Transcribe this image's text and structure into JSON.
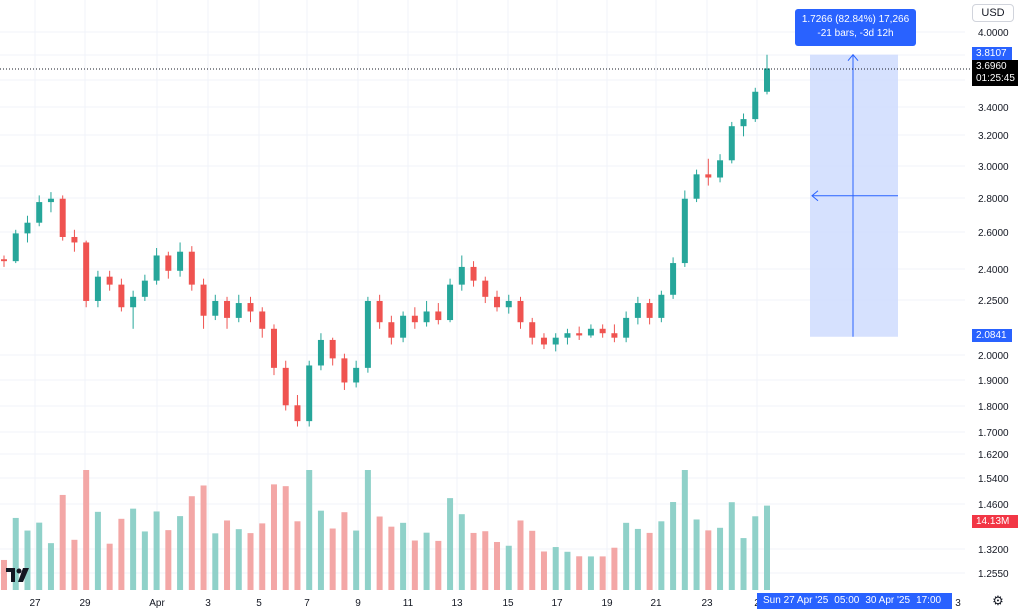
{
  "header": {
    "currency": "USD"
  },
  "measure_tooltip": {
    "line1": "1.7266 (82.84%) 17,266",
    "line2": "-21 bars, -3d 12h"
  },
  "price_axis": {
    "labels": [
      "4.0000",
      "3.4000",
      "3.2000",
      "3.0000",
      "2.8000",
      "2.6000",
      "2.4000",
      "2.2500",
      "2.0000",
      "1.9000",
      "1.8000",
      "1.7000",
      "1.6200",
      "1.5400",
      "1.4600",
      "1.3200",
      "1.2550"
    ],
    "measure_top": "3.8107",
    "measure_bottom": "2.0841",
    "last_price": "3.6960",
    "countdown": "01:25:45",
    "volume_label": "14.13M"
  },
  "time_axis": {
    "labels": [
      "27",
      "29",
      "Apr",
      "3",
      "5",
      "7",
      "9",
      "11",
      "13",
      "15",
      "17",
      "19",
      "21",
      "23",
      "2",
      "3"
    ],
    "range_start": "Sun 27 Apr '25",
    "range_start_time": "05:00",
    "range_end": "30 Apr '25",
    "range_end_time": "17:00"
  },
  "colors": {
    "up": "#26a69a",
    "down": "#ef5350",
    "vol_up": "#8fd1c9",
    "vol_down": "#f3a7a6",
    "measure_fill": "#cfdcfe",
    "measure_line": "#2962ff"
  },
  "chart_data": {
    "type": "candlestick",
    "scale": "log",
    "ylim": [
      1.2,
      4.1
    ],
    "grid": true,
    "last_price": 3.696,
    "measure": {
      "low": 2.0841,
      "high": 3.8107,
      "change": 1.7266,
      "change_pct": 82.84,
      "bars": -21
    },
    "candles_12h_approx": [
      {
        "o": 2.46,
        "h": 2.48,
        "l": 2.42,
        "c": 2.45
      },
      {
        "o": 2.45,
        "h": 2.62,
        "l": 2.44,
        "c": 2.6
      },
      {
        "o": 2.6,
        "h": 2.7,
        "l": 2.55,
        "c": 2.66
      },
      {
        "o": 2.66,
        "h": 2.82,
        "l": 2.64,
        "c": 2.78
      },
      {
        "o": 2.78,
        "h": 2.84,
        "l": 2.72,
        "c": 2.8
      },
      {
        "o": 2.8,
        "h": 2.82,
        "l": 2.56,
        "c": 2.58
      },
      {
        "o": 2.58,
        "h": 2.62,
        "l": 2.5,
        "c": 2.55
      },
      {
        "o": 2.55,
        "h": 2.56,
        "l": 2.22,
        "c": 2.25
      },
      {
        "o": 2.25,
        "h": 2.4,
        "l": 2.22,
        "c": 2.37
      },
      {
        "o": 2.37,
        "h": 2.4,
        "l": 2.3,
        "c": 2.33
      },
      {
        "o": 2.33,
        "h": 2.36,
        "l": 2.2,
        "c": 2.22
      },
      {
        "o": 2.22,
        "h": 2.3,
        "l": 2.12,
        "c": 2.27
      },
      {
        "o": 2.27,
        "h": 2.38,
        "l": 2.25,
        "c": 2.35
      },
      {
        "o": 2.35,
        "h": 2.52,
        "l": 2.33,
        "c": 2.48
      },
      {
        "o": 2.48,
        "h": 2.5,
        "l": 2.36,
        "c": 2.4
      },
      {
        "o": 2.4,
        "h": 2.55,
        "l": 2.37,
        "c": 2.5
      },
      {
        "o": 2.5,
        "h": 2.53,
        "l": 2.3,
        "c": 2.33
      },
      {
        "o": 2.33,
        "h": 2.36,
        "l": 2.12,
        "c": 2.18
      },
      {
        "o": 2.18,
        "h": 2.28,
        "l": 2.16,
        "c": 2.25
      },
      {
        "o": 2.25,
        "h": 2.27,
        "l": 2.12,
        "c": 2.17
      },
      {
        "o": 2.17,
        "h": 2.28,
        "l": 2.15,
        "c": 2.24
      },
      {
        "o": 2.24,
        "h": 2.27,
        "l": 2.15,
        "c": 2.2
      },
      {
        "o": 2.2,
        "h": 2.22,
        "l": 2.08,
        "c": 2.12
      },
      {
        "o": 2.12,
        "h": 2.14,
        "l": 1.92,
        "c": 1.95
      },
      {
        "o": 1.95,
        "h": 1.98,
        "l": 1.78,
        "c": 1.8
      },
      {
        "o": 1.8,
        "h": 1.84,
        "l": 1.72,
        "c": 1.74
      },
      {
        "o": 1.74,
        "h": 1.98,
        "l": 1.72,
        "c": 1.96
      },
      {
        "o": 1.96,
        "h": 2.1,
        "l": 1.94,
        "c": 2.07
      },
      {
        "o": 2.07,
        "h": 2.08,
        "l": 1.96,
        "c": 1.99
      },
      {
        "o": 1.99,
        "h": 2.01,
        "l": 1.86,
        "c": 1.89
      },
      {
        "o": 1.89,
        "h": 1.98,
        "l": 1.87,
        "c": 1.95
      },
      {
        "o": 1.95,
        "h": 2.27,
        "l": 1.93,
        "c": 2.25
      },
      {
        "o": 2.25,
        "h": 2.28,
        "l": 2.12,
        "c": 2.15
      },
      {
        "o": 2.15,
        "h": 2.18,
        "l": 2.05,
        "c": 2.08
      },
      {
        "o": 2.08,
        "h": 2.2,
        "l": 2.06,
        "c": 2.18
      },
      {
        "o": 2.18,
        "h": 2.22,
        "l": 2.12,
        "c": 2.15
      },
      {
        "o": 2.15,
        "h": 2.25,
        "l": 2.13,
        "c": 2.2
      },
      {
        "o": 2.2,
        "h": 2.24,
        "l": 2.14,
        "c": 2.16
      },
      {
        "o": 2.16,
        "h": 2.36,
        "l": 2.15,
        "c": 2.33
      },
      {
        "o": 2.33,
        "h": 2.48,
        "l": 2.3,
        "c": 2.42
      },
      {
        "o": 2.42,
        "h": 2.45,
        "l": 2.32,
        "c": 2.35
      },
      {
        "o": 2.35,
        "h": 2.37,
        "l": 2.24,
        "c": 2.27
      },
      {
        "o": 2.27,
        "h": 2.3,
        "l": 2.2,
        "c": 2.22
      },
      {
        "o": 2.22,
        "h": 2.28,
        "l": 2.19,
        "c": 2.25
      },
      {
        "o": 2.25,
        "h": 2.27,
        "l": 2.12,
        "c": 2.15
      },
      {
        "o": 2.15,
        "h": 2.17,
        "l": 2.05,
        "c": 2.08
      },
      {
        "o": 2.08,
        "h": 2.1,
        "l": 2.03,
        "c": 2.05
      },
      {
        "o": 2.05,
        "h": 2.1,
        "l": 2.02,
        "c": 2.08
      },
      {
        "o": 2.08,
        "h": 2.12,
        "l": 2.05,
        "c": 2.1
      },
      {
        "o": 2.1,
        "h": 2.13,
        "l": 2.07,
        "c": 2.09
      },
      {
        "o": 2.09,
        "h": 2.14,
        "l": 2.08,
        "c": 2.12
      },
      {
        "o": 2.12,
        "h": 2.14,
        "l": 2.08,
        "c": 2.1
      },
      {
        "o": 2.1,
        "h": 2.14,
        "l": 2.06,
        "c": 2.08
      },
      {
        "o": 2.08,
        "h": 2.2,
        "l": 2.06,
        "c": 2.17
      },
      {
        "o": 2.17,
        "h": 2.27,
        "l": 2.14,
        "c": 2.24
      },
      {
        "o": 2.24,
        "h": 2.26,
        "l": 2.14,
        "c": 2.17
      },
      {
        "o": 2.17,
        "h": 2.3,
        "l": 2.15,
        "c": 2.28
      },
      {
        "o": 2.28,
        "h": 2.47,
        "l": 2.26,
        "c": 2.44
      },
      {
        "o": 2.44,
        "h": 2.85,
        "l": 2.42,
        "c": 2.8
      },
      {
        "o": 2.8,
        "h": 2.98,
        "l": 2.78,
        "c": 2.95
      },
      {
        "o": 2.95,
        "h": 3.05,
        "l": 2.88,
        "c": 2.93
      },
      {
        "o": 2.93,
        "h": 3.08,
        "l": 2.9,
        "c": 3.04
      },
      {
        "o": 3.04,
        "h": 3.3,
        "l": 3.02,
        "c": 3.27
      },
      {
        "o": 3.27,
        "h": 3.36,
        "l": 3.2,
        "c": 3.32
      },
      {
        "o": 3.32,
        "h": 3.55,
        "l": 3.3,
        "c": 3.52
      },
      {
        "o": 3.52,
        "h": 3.81,
        "l": 3.5,
        "c": 3.7
      }
    ]
  }
}
